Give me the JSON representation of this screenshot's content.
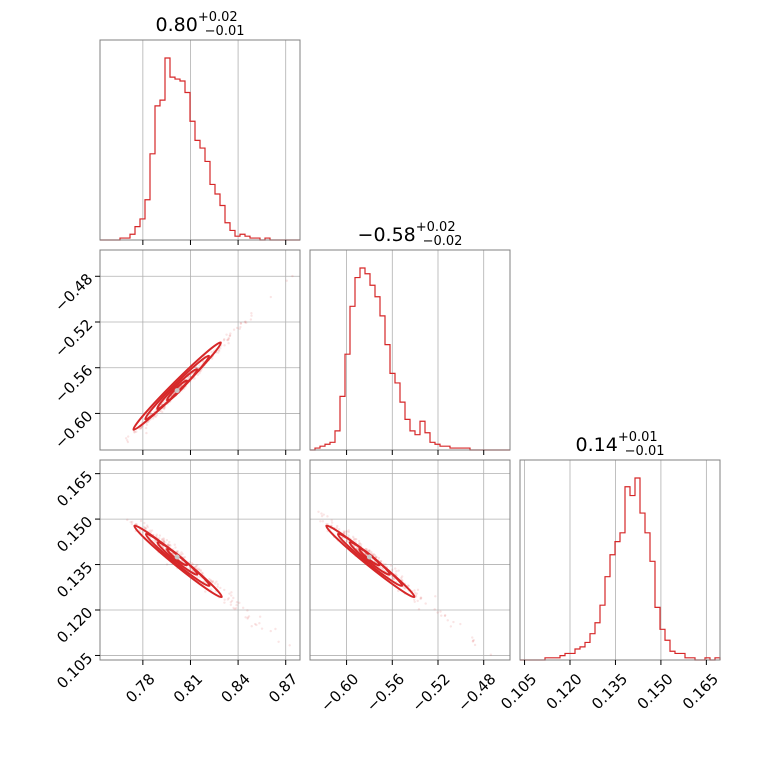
{
  "colors": {
    "series": "#d62728",
    "frame": "#808080",
    "grid": "#b0b0b0"
  },
  "chart_data": {
    "type": "corner",
    "titles": [
      {
        "main": "0.80",
        "sup": "+0.02",
        "sub": "−0.01"
      },
      {
        "main": "−0.58",
        "sup": "+0.02",
        "sub": "−0.02"
      },
      {
        "main": "0.14",
        "sup": "+0.01",
        "sub": "−0.01"
      }
    ],
    "ranges": [
      [
        0.753,
        0.879
      ],
      [
        -0.632,
        -0.457
      ],
      [
        0.1035,
        0.1695
      ]
    ],
    "ticks": [
      {
        "values": [
          0.78,
          0.81,
          0.84,
          0.87
        ],
        "labels": [
          "0.78",
          "0.81",
          "0.84",
          "0.87"
        ]
      },
      {
        "values": [
          -0.6,
          -0.56,
          -0.52,
          -0.48
        ],
        "labels": [
          "−0.60",
          "−0.56",
          "−0.52",
          "−0.48"
        ]
      },
      {
        "values": [
          0.105,
          0.12,
          0.135,
          0.15,
          0.165
        ],
        "labels": [
          "0.105",
          "0.120",
          "0.135",
          "0.150",
          "0.165"
        ]
      }
    ],
    "histograms": [
      {
        "param": 0,
        "counts": [
          0,
          0,
          0,
          0,
          1,
          1,
          3,
          7,
          11,
          21,
          45,
          70,
          73,
          95,
          85,
          84,
          83,
          77,
          62,
          52,
          48,
          41,
          29,
          24,
          18,
          9,
          5,
          2,
          3,
          2,
          1,
          1,
          0,
          1,
          0,
          0,
          0,
          0,
          0,
          0
        ]
      },
      {
        "param": 1,
        "counts": [
          0,
          1,
          2,
          3,
          4,
          10,
          28,
          50,
          75,
          90,
          95,
          92,
          86,
          80,
          70,
          55,
          40,
          35,
          25,
          16,
          10,
          8,
          15,
          9,
          4,
          3,
          2,
          2,
          1,
          1,
          1,
          1,
          0,
          0,
          0,
          0,
          0,
          0,
          0,
          0
        ]
      },
      {
        "param": 2,
        "counts": [
          0,
          0,
          0,
          0,
          0,
          1,
          1,
          1,
          2,
          3,
          3,
          5,
          6,
          8,
          12,
          17,
          25,
          38,
          48,
          54,
          58,
          79,
          75,
          83,
          67,
          58,
          45,
          24,
          14,
          9,
          4,
          3,
          3,
          1,
          1,
          0,
          0,
          1,
          0,
          1
        ]
      }
    ],
    "correlations": {
      "p0_p1": "strong positive",
      "p0_p2": "strong negative",
      "p1_p2": "strong negative"
    }
  }
}
